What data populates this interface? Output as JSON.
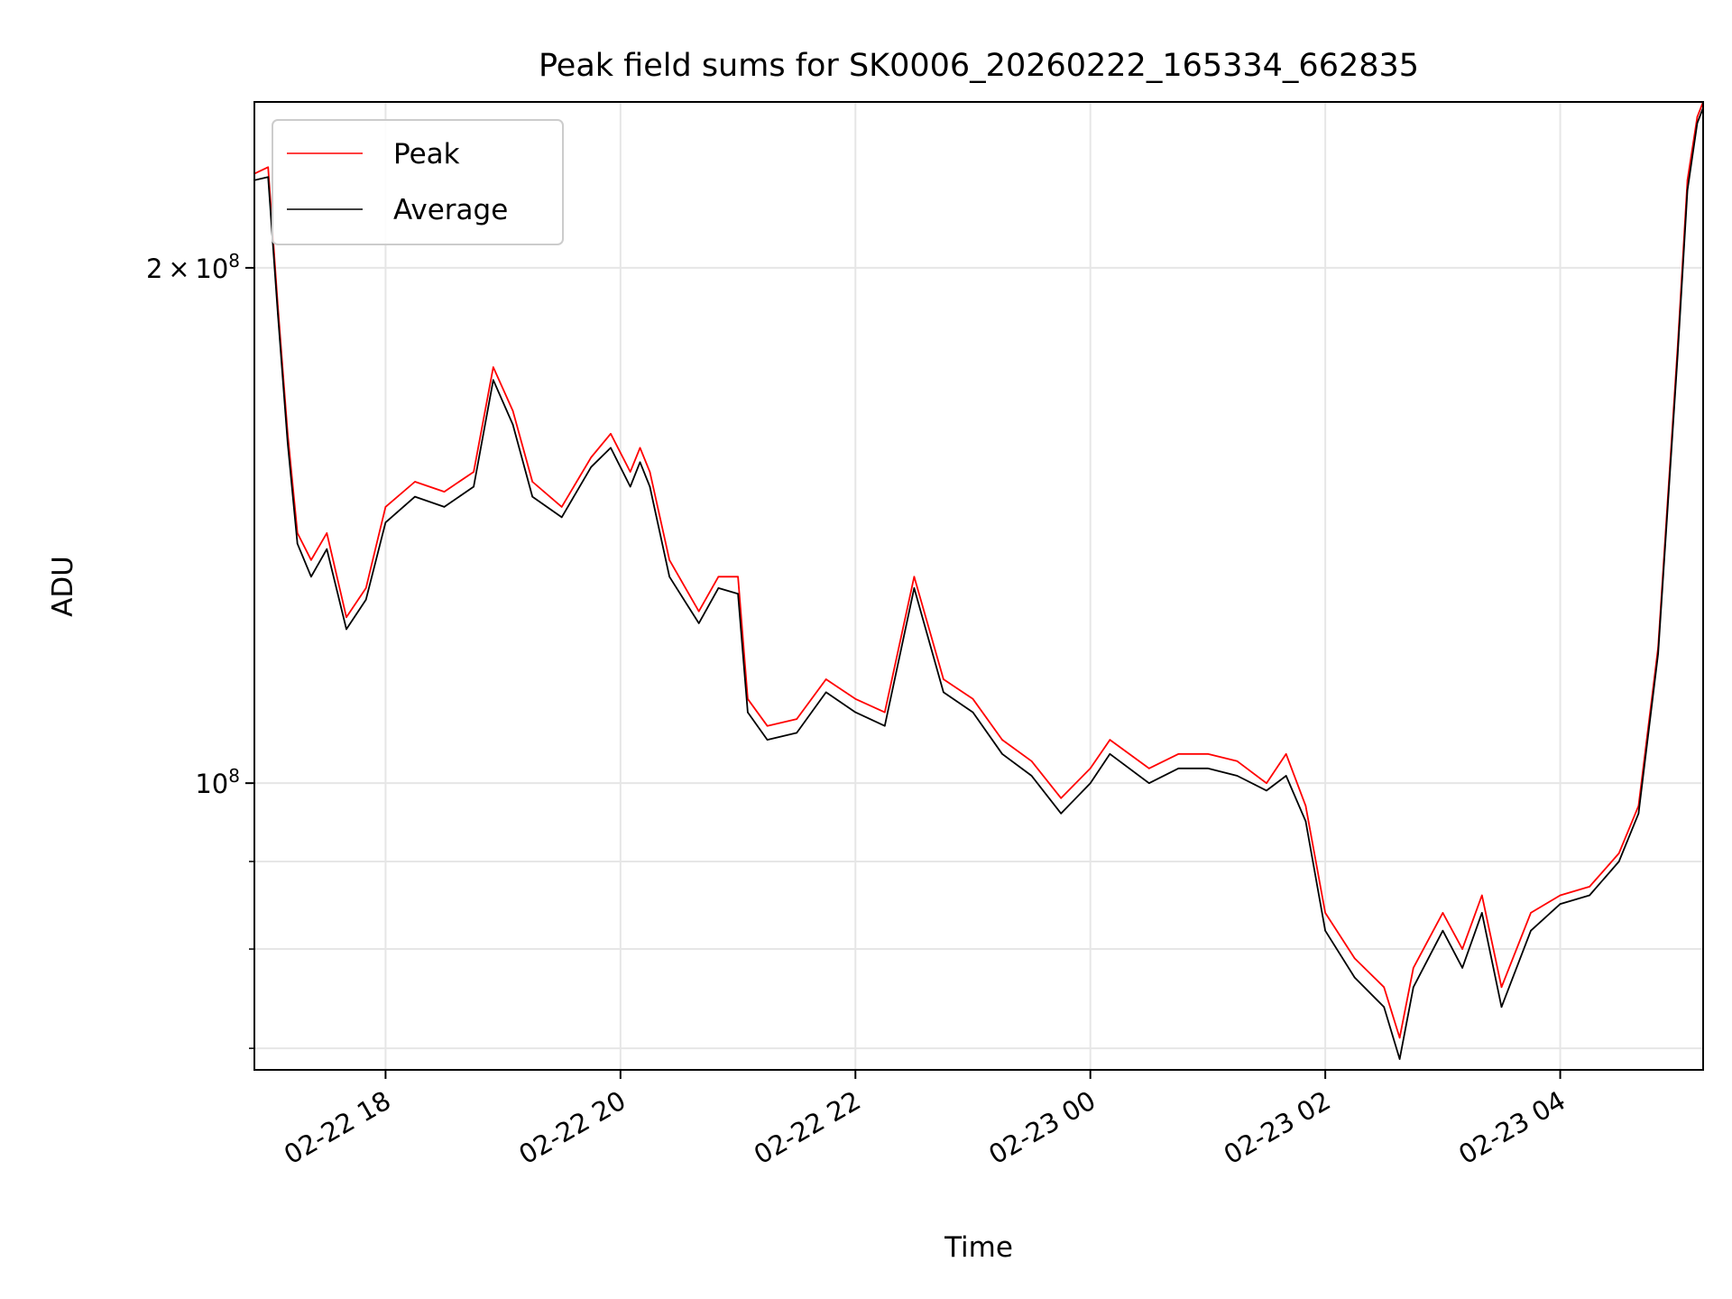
{
  "chart_data": {
    "type": "line",
    "title": "Peak field sums for SK0006_20260222_165334_662835",
    "xlabel": "Time",
    "ylabel": "ADU",
    "yscale": "log",
    "ylim": [
      68000000,
      250000000
    ],
    "xlim": [
      "2026-02-22 16:53",
      "2026-02-23 05:13"
    ],
    "grid": true,
    "legend_placement": "top-left",
    "x_ticks": [
      {
        "value": "2026-02-22 18:00",
        "label": "02-22 18"
      },
      {
        "value": "2026-02-22 20:00",
        "label": "02-22 20"
      },
      {
        "value": "2026-02-22 22:00",
        "label": "02-22 22"
      },
      {
        "value": "2026-02-23 00:00",
        "label": "02-23 00"
      },
      {
        "value": "2026-02-23 02:00",
        "label": "02-23 02"
      },
      {
        "value": "2026-02-23 04:00",
        "label": "02-23 04"
      }
    ],
    "y_ticks": [
      {
        "value": 100000000,
        "label": "10^8"
      },
      {
        "value": 200000000,
        "label": "2×10^8"
      }
    ],
    "series": [
      {
        "name": "Peak",
        "color": "#ff0000",
        "x": [
          "2026-02-22 16:53",
          "2026-02-22 17:00",
          "2026-02-22 17:05",
          "2026-02-22 17:10",
          "2026-02-22 17:15",
          "2026-02-22 17:22",
          "2026-02-22 17:30",
          "2026-02-22 17:40",
          "2026-02-22 17:50",
          "2026-02-22 18:00",
          "2026-02-22 18:15",
          "2026-02-22 18:30",
          "2026-02-22 18:45",
          "2026-02-22 18:55",
          "2026-02-22 19:05",
          "2026-02-22 19:15",
          "2026-02-22 19:30",
          "2026-02-22 19:45",
          "2026-02-22 19:55",
          "2026-02-22 20:05",
          "2026-02-22 20:10",
          "2026-02-22 20:15",
          "2026-02-22 20:25",
          "2026-02-22 20:40",
          "2026-02-22 20:50",
          "2026-02-22 21:00",
          "2026-02-22 21:05",
          "2026-02-22 21:15",
          "2026-02-22 21:30",
          "2026-02-22 21:45",
          "2026-02-22 22:00",
          "2026-02-22 22:15",
          "2026-02-22 22:30",
          "2026-02-22 22:45",
          "2026-02-22 23:00",
          "2026-02-22 23:15",
          "2026-02-22 23:30",
          "2026-02-22 23:45",
          "2026-02-23 00:00",
          "2026-02-23 00:10",
          "2026-02-23 00:30",
          "2026-02-23 00:45",
          "2026-02-23 01:00",
          "2026-02-23 01:15",
          "2026-02-23 01:30",
          "2026-02-23 01:40",
          "2026-02-23 01:50",
          "2026-02-23 02:00",
          "2026-02-23 02:15",
          "2026-02-23 02:30",
          "2026-02-23 02:38",
          "2026-02-23 02:45",
          "2026-02-23 03:00",
          "2026-02-23 03:10",
          "2026-02-23 03:20",
          "2026-02-23 03:30",
          "2026-02-23 03:45",
          "2026-02-23 04:00",
          "2026-02-23 04:15",
          "2026-02-23 04:30",
          "2026-02-23 04:40",
          "2026-02-23 04:50",
          "2026-02-23 05:00",
          "2026-02-23 05:05",
          "2026-02-23 05:10",
          "2026-02-23 05:13"
        ],
        "values": [
          227000000,
          229000000,
          190000000,
          160000000,
          140000000,
          135000000,
          140000000,
          125000000,
          130000000,
          145000000,
          150000000,
          148000000,
          152000000,
          175000000,
          165000000,
          150000000,
          145000000,
          155000000,
          160000000,
          152000000,
          157000000,
          152000000,
          135000000,
          126000000,
          132000000,
          132000000,
          112000000,
          108000000,
          109000000,
          115000000,
          112000000,
          110000000,
          132000000,
          115000000,
          112000000,
          106000000,
          103000000,
          98000000,
          102000000,
          106000000,
          102000000,
          104000000,
          104000000,
          103000000,
          100000000,
          104000000,
          97000000,
          84000000,
          79000000,
          76000000,
          71000000,
          78000000,
          84000000,
          80000000,
          86000000,
          76000000,
          84000000,
          86000000,
          87000000,
          91000000,
          97000000,
          120000000,
          180000000,
          225000000,
          245000000,
          250000000
        ]
      },
      {
        "name": "Average",
        "color": "#000000",
        "x": [
          "2026-02-22 16:53",
          "2026-02-22 17:00",
          "2026-02-22 17:05",
          "2026-02-22 17:10",
          "2026-02-22 17:15",
          "2026-02-22 17:22",
          "2026-02-22 17:30",
          "2026-02-22 17:40",
          "2026-02-22 17:50",
          "2026-02-22 18:00",
          "2026-02-22 18:15",
          "2026-02-22 18:30",
          "2026-02-22 18:45",
          "2026-02-22 18:55",
          "2026-02-22 19:05",
          "2026-02-22 19:15",
          "2026-02-22 19:30",
          "2026-02-22 19:45",
          "2026-02-22 19:55",
          "2026-02-22 20:05",
          "2026-02-22 20:10",
          "2026-02-22 20:15",
          "2026-02-22 20:25",
          "2026-02-22 20:40",
          "2026-02-22 20:50",
          "2026-02-22 21:00",
          "2026-02-22 21:05",
          "2026-02-22 21:15",
          "2026-02-22 21:30",
          "2026-02-22 21:45",
          "2026-02-22 22:00",
          "2026-02-22 22:15",
          "2026-02-22 22:30",
          "2026-02-22 22:45",
          "2026-02-22 23:00",
          "2026-02-22 23:15",
          "2026-02-22 23:30",
          "2026-02-22 23:45",
          "2026-02-23 00:00",
          "2026-02-23 00:10",
          "2026-02-23 00:30",
          "2026-02-23 00:45",
          "2026-02-23 01:00",
          "2026-02-23 01:15",
          "2026-02-23 01:30",
          "2026-02-23 01:40",
          "2026-02-23 01:50",
          "2026-02-23 02:00",
          "2026-02-23 02:15",
          "2026-02-23 02:30",
          "2026-02-23 02:38",
          "2026-02-23 02:45",
          "2026-02-23 03:00",
          "2026-02-23 03:10",
          "2026-02-23 03:20",
          "2026-02-23 03:30",
          "2026-02-23 03:45",
          "2026-02-23 04:00",
          "2026-02-23 04:15",
          "2026-02-23 04:30",
          "2026-02-23 04:40",
          "2026-02-23 04:50",
          "2026-02-23 05:00",
          "2026-02-23 05:05",
          "2026-02-23 05:10",
          "2026-02-23 05:13"
        ],
        "values": [
          225000000,
          226000000,
          188000000,
          158000000,
          138000000,
          132000000,
          137000000,
          123000000,
          128000000,
          142000000,
          147000000,
          145000000,
          149000000,
          172000000,
          162000000,
          147000000,
          143000000,
          153000000,
          157000000,
          149000000,
          154000000,
          149000000,
          132000000,
          124000000,
          130000000,
          129000000,
          110000000,
          106000000,
          107000000,
          113000000,
          110000000,
          108000000,
          130000000,
          113000000,
          110000000,
          104000000,
          101000000,
          96000000,
          100000000,
          104000000,
          100000000,
          102000000,
          102000000,
          101000000,
          99000000,
          101000000,
          95000000,
          82000000,
          77000000,
          74000000,
          69000000,
          76000000,
          82000000,
          78000000,
          84000000,
          74000000,
          82000000,
          85000000,
          86000000,
          90000000,
          96000000,
          119000000,
          178000000,
          222000000,
          243000000,
          248000000
        ]
      }
    ]
  }
}
